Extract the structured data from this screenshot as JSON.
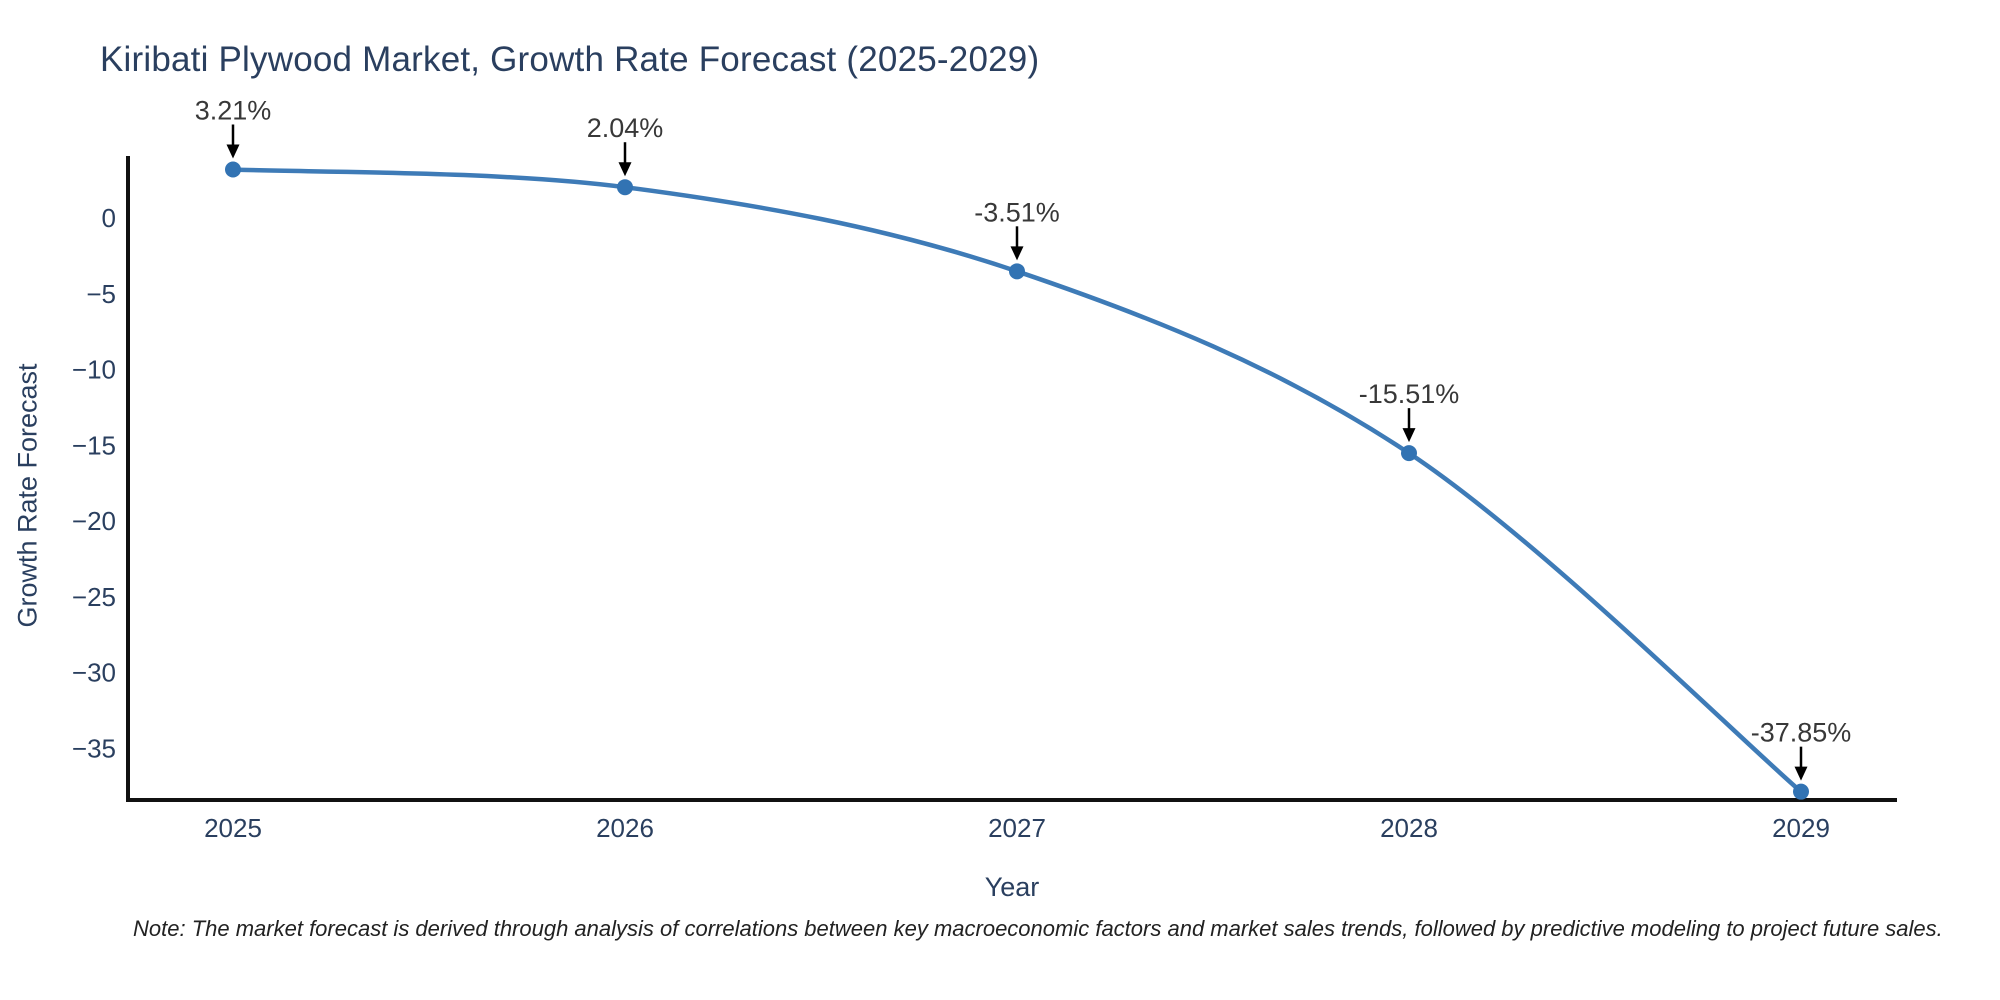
{
  "title": "Kiribati Plywood Market, Growth Rate Forecast (2025-2029)",
  "note": "Note: The market forecast is derived through analysis of correlations between key macroeconomic factors and market sales trends, followed by predictive modeling to project future sales.",
  "chart_data": {
    "type": "line",
    "title": "Kiribati Plywood Market, Growth Rate Forecast (2025-2029)",
    "xlabel": "Year",
    "ylabel": "Growth Rate Forecast",
    "categories": [
      "2025",
      "2026",
      "2027",
      "2028",
      "2029"
    ],
    "series": [
      {
        "name": "Growth Rate Forecast",
        "values": [
          3.21,
          2.04,
          -3.51,
          -15.51,
          -37.85
        ],
        "point_labels": [
          "3.21%",
          "2.04%",
          "-3.51%",
          "-15.51%",
          "-37.85%"
        ]
      }
    ],
    "line_shape": "spline",
    "markers": true,
    "annotations_arrows": true,
    "grid": false,
    "legend": "none",
    "ylim": [
      -38.4,
      4.1
    ],
    "ytick_values": [
      0,
      -5,
      -10,
      -15,
      -20,
      -25,
      -30,
      -35
    ],
    "ytick_labels": [
      "0",
      "−5",
      "−10",
      "−15",
      "−20",
      "−25",
      "−30",
      "−35"
    ],
    "colors": {
      "line": "#3e7bb7",
      "marker": "#3273b3",
      "arrow": "#000000",
      "axis_line": "#111111",
      "tick_text": "#2a3f5f",
      "title_text": "#2a3f5f",
      "annotation_text": "#383838"
    }
  }
}
